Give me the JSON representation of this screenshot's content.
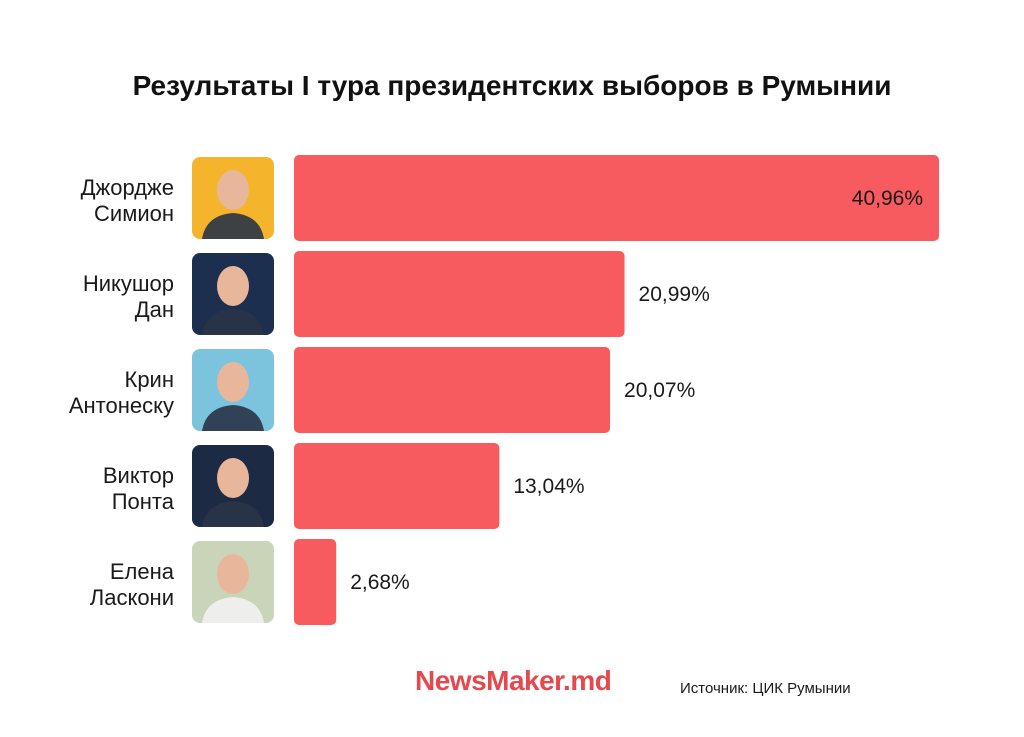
{
  "title": "Результаты I тура президентских выборов в Румынии",
  "brand": "NewsMaker.md",
  "source": "Источник: ЦИК Румынии",
  "colors": {
    "bar": "#f75a5f",
    "brand": "#e5484d",
    "text": "#1a1a1a"
  },
  "chart_data": {
    "type": "bar",
    "orientation": "horizontal",
    "title": "Результаты I тура президентских выборов в Румынии",
    "unit": "%",
    "xlim": [
      0,
      40.96
    ],
    "categories": [
      [
        "Джордже",
        "Симион"
      ],
      [
        "Никушор",
        "Дан"
      ],
      [
        "Крин",
        "Антонеску"
      ],
      [
        "Виктор",
        "Понта"
      ],
      [
        "Елена",
        "Ласкони"
      ]
    ],
    "values": [
      40.96,
      20.99,
      20.07,
      13.04,
      2.68
    ],
    "labels": [
      "40,96%",
      "20,99%",
      "20,07%",
      "13,04%",
      "2,68%"
    ],
    "photo_backgrounds": [
      "#f4b42c",
      "#1d2f4f",
      "#7cc4de",
      "#1c2a44",
      "#c9d4b8"
    ],
    "grid": false,
    "legend": "none"
  }
}
